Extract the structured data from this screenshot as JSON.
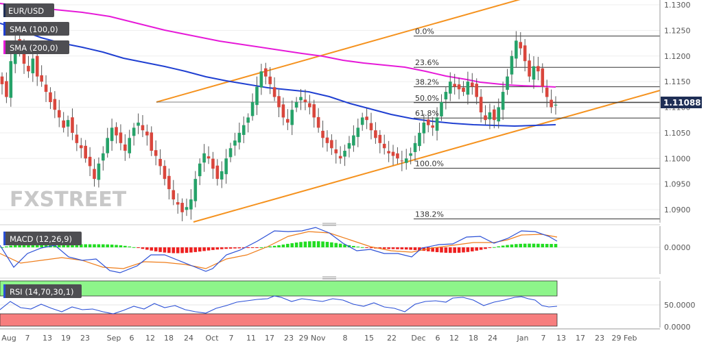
{
  "chart_data": [
    {
      "type": "candlestick",
      "panel": "price",
      "symbol": "EUR/USD",
      "price_axis_ticks": [
        "1.1300",
        "1.1250",
        "1.1200",
        "1.1150",
        "1.1100",
        "1.1050",
        "1.1000",
        "1.0950",
        "1.0900"
      ],
      "ylim": [
        1.0875,
        1.1315
      ],
      "last_price_label": "1.11088",
      "last_price": 1.1109,
      "indicators": [
        {
          "name": "SMA (100,0)",
          "color": "#1f3fd1"
        },
        {
          "name": "SMA (200,0)",
          "color": "#e619d8"
        }
      ],
      "fibonacci_levels": [
        {
          "label": "0.0%",
          "price": 1.1239
        },
        {
          "label": "23.6%",
          "price": 1.1178
        },
        {
          "label": "38.2%",
          "price": 1.114
        },
        {
          "label": "50.0%",
          "price": 1.1109
        },
        {
          "label": "61.8%",
          "price": 1.1079
        },
        {
          "label": "100.0%",
          "price": 1.0981
        },
        {
          "label": "138.2%",
          "price": 1.0882
        }
      ],
      "watermark": "FXSTREET"
    },
    {
      "type": "line+histogram",
      "panel": "macd",
      "indicator": "MACD (12,26,9)",
      "axis_ticks": [
        "0.0000"
      ],
      "colors": {
        "macd_line": "#2a4fd6",
        "signal_line": "#ef7d1a",
        "hist_positive": "#22dd22",
        "hist_negative": "#ee2020"
      }
    },
    {
      "type": "line",
      "panel": "rsi",
      "indicator": "RSI (14,70,30,1)",
      "axis_ticks": [
        "50.0000",
        "0.0000"
      ],
      "colors": {
        "line": "#2a4fd6",
        "overbought_zone": "#8df58a",
        "oversold_zone": "#f77e7e"
      }
    }
  ],
  "x_axis_labels": [
    "Aug",
    "7",
    "13",
    "19",
    "23",
    "Sep",
    "6",
    "12",
    "18",
    "24",
    "Oct",
    "7",
    "11",
    "17",
    "23",
    "29 Nov",
    "8",
    "15",
    "22",
    "Dec",
    "6",
    "12",
    "18",
    "24",
    "Jan",
    "7",
    "13",
    "17",
    "23",
    "29 Feb"
  ]
}
